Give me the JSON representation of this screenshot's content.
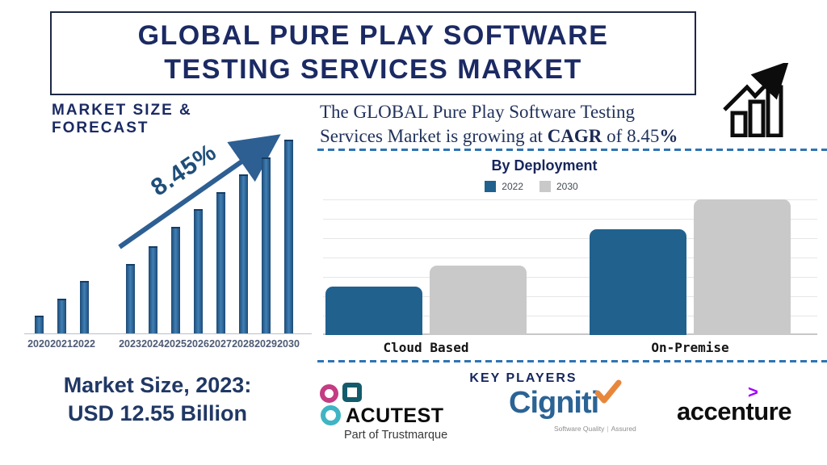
{
  "header": {
    "title_line1": "GLOBAL PURE PLAY SOFTWARE",
    "title_line2": "TESTING SERVICES MARKET"
  },
  "left_panel": {
    "section_title": "MARKET SIZE & FORECAST",
    "cagr_annotation": "8.45%",
    "market_size_line1": "Market Size, 2023:",
    "market_size_line2": "USD 12.55 Billion"
  },
  "right_panel": {
    "growth_statement": {
      "line1": "The GLOBAL Pure Play Software Testing",
      "line2_prefix": "Services Market is growing at ",
      "line2_bold1": "CAGR",
      "line2_mid": " of 8.45",
      "line2_bold2": "%"
    },
    "deployment": {
      "title": "By Deployment"
    },
    "key_players": {
      "title": "KEY PLAYERS",
      "acutest_name": "ACUTEST",
      "acutest_subtitle": "Part of Trustmarque",
      "cigniti_name": "Cigniti",
      "cigniti_tagline_left": "Software Quality",
      "cigniti_tagline_right": "Assured",
      "accenture_name": "accenture",
      "accenture_symbol": ">"
    }
  },
  "colors": {
    "navy": "#1b2a63",
    "bar_blue": "#2e6496",
    "deployment_blue": "#20618e",
    "deployment_gray": "#c9c9c9",
    "dashed_line": "#2e74b5",
    "accenture_purple": "#a100ff",
    "cigniti_blue": "#2b6395",
    "cigniti_check_orange": "#e8873b",
    "acutest_magenta": "#c43c82",
    "acutest_dark_teal": "#135b6b",
    "acutest_light_teal": "#3fb4c4"
  },
  "chart_data": [
    {
      "type": "bar",
      "title": "MARKET SIZE & FORECAST",
      "categories": [
        "2020",
        "2021",
        "2022",
        "2023",
        "2024",
        "2025",
        "2026",
        "2027",
        "2028",
        "2029",
        "2030"
      ],
      "values": [
        0.09,
        0.18,
        0.27,
        0.36,
        0.45,
        0.55,
        0.64,
        0.73,
        0.82,
        0.91,
        1.0
      ],
      "unit": "relative bar height (no y-axis shown)",
      "annotation": "8.45% CAGR trend arrow",
      "bar_color": "#2e6496",
      "xlabel": "",
      "ylabel": "",
      "grid": false
    },
    {
      "type": "bar",
      "title": "By Deployment",
      "categories": [
        "Cloud Based",
        "On-Premise"
      ],
      "series": [
        {
          "name": "2022",
          "values": [
            0.34,
            0.75
          ],
          "color": "#20618e"
        },
        {
          "name": "2030",
          "values": [
            0.49,
            0.96
          ],
          "color": "#c9c9c9"
        }
      ],
      "unit": "relative bar height (no y-axis shown)",
      "legend_position": "top",
      "grid": true
    }
  ]
}
